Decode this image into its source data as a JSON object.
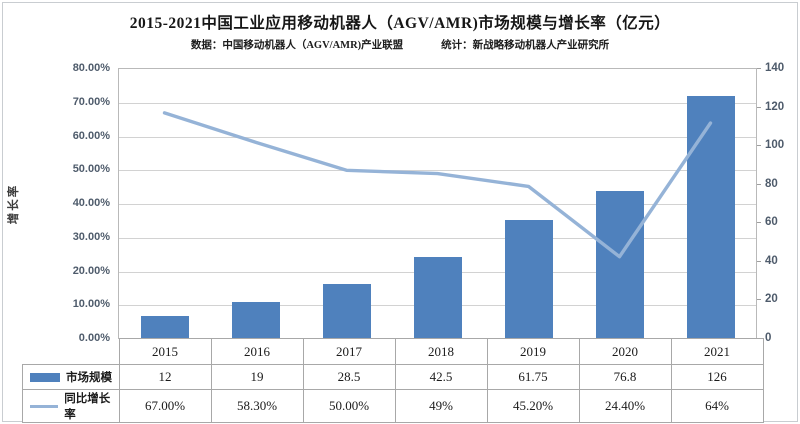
{
  "header": {
    "title": "2015-2021中国工业应用移动机器人（AGV/AMR)市场规模与增长率（亿元）",
    "source_left": "数据：中国移动机器人（AGV/AMR)产业联盟",
    "source_right": "统计：新战略移动机器人产业研究所"
  },
  "chart_data": {
    "type": "bar",
    "subtype": "bar+line combo",
    "categories": [
      "2015",
      "2016",
      "2017",
      "2018",
      "2019",
      "2020",
      "2021"
    ],
    "series": [
      {
        "name": "市场规模",
        "type": "bar",
        "axis": "right",
        "values": [
          12,
          19,
          28.5,
          42.5,
          61.75,
          76.8,
          126
        ],
        "value_labels": [
          "12",
          "19",
          "28.5",
          "42.5",
          "61.75",
          "76.8",
          "126"
        ],
        "color": "#4F81BD"
      },
      {
        "name": "同比增长率",
        "type": "line",
        "axis": "left",
        "values": [
          67,
          58.3,
          50,
          49,
          45.2,
          24.4,
          64
        ],
        "value_labels": [
          "67.00%",
          "58.30%",
          "50.00%",
          "49%",
          "45.20%",
          "24.40%",
          "64%"
        ],
        "color": "#95B3D7"
      }
    ],
    "left_axis": {
      "title": "增长率",
      "min": 0,
      "max": 80,
      "step": 10,
      "tick_labels": [
        "80.00%",
        "70.00%",
        "60.00%",
        "50.00%",
        "40.00%",
        "30.00%",
        "20.00%",
        "10.00%",
        "0.00%"
      ]
    },
    "right_axis": {
      "min": 0,
      "max": 140,
      "step": 20,
      "tick_labels": [
        "140",
        "120",
        "100",
        "80",
        "60",
        "40",
        "20",
        "0"
      ]
    },
    "grid": true,
    "legend_position": "data-table-left-column",
    "colors": {
      "grid": "#d2d2d2",
      "tick_text": "#4e5b6b"
    }
  },
  "table": {
    "year_row": [
      "2015",
      "2016",
      "2017",
      "2018",
      "2019",
      "2020",
      "2021"
    ],
    "rows": [
      {
        "label": "市场规模",
        "swatch": "bar-swatch",
        "cells": [
          "12",
          "19",
          "28.5",
          "42.5",
          "61.75",
          "76.8",
          "126"
        ]
      },
      {
        "label": "同比增长率",
        "swatch": "line-swatch",
        "cells": [
          "67.00%",
          "58.30%",
          "50.00%",
          "49%",
          "45.20%",
          "24.40%",
          "64%"
        ]
      }
    ]
  }
}
